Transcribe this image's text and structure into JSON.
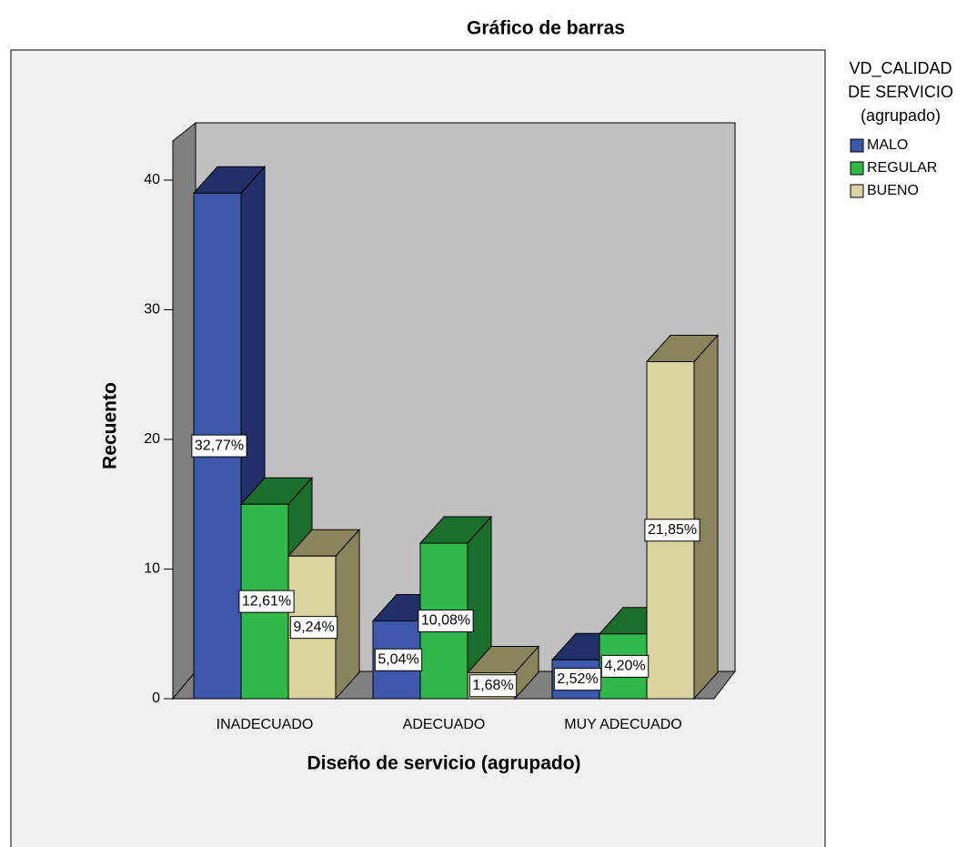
{
  "chart_data": {
    "type": "bar3d",
    "title": "Gráfico de barras",
    "x_label": "Diseño de servicio (agrupado)",
    "y_label": "Recuento",
    "legend_title": [
      "VD_CALIDAD",
      "DE SERVICIO",
      "(agrupado)"
    ],
    "categories": [
      "INADECUADO",
      "ADECUADO",
      "MUY ADECUADO"
    ],
    "ylim": [
      0,
      40
    ],
    "yticks": [
      0,
      10,
      20,
      30,
      40
    ],
    "series": [
      {
        "name": "MALO",
        "color": "#3d58ab",
        "side": "#22306a",
        "values": [
          39,
          6,
          3
        ],
        "percentages": [
          32.77,
          5.04,
          2.52
        ],
        "percentage_labels": [
          "32,77%",
          "5,04%",
          "2,52%"
        ]
      },
      {
        "name": "REGULAR",
        "color": "#30b94a",
        "side": "#1b6e2b",
        "values": [
          15,
          12,
          5
        ],
        "percentages": [
          12.61,
          10.08,
          4.2
        ],
        "percentage_labels": [
          "12,61%",
          "10,08%",
          "4,20%"
        ]
      },
      {
        "name": "BUENO",
        "color": "#d9d3a0",
        "side": "#8a845c",
        "values": [
          11,
          2,
          26
        ],
        "percentages": [
          9.24,
          1.68,
          21.85
        ],
        "percentage_labels": [
          "9,24%",
          "1,68%",
          "21,85%"
        ]
      }
    ]
  }
}
